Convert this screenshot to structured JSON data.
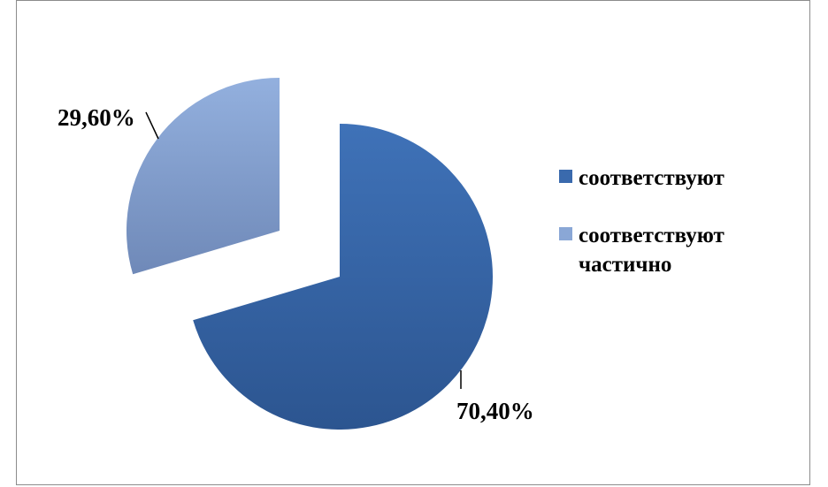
{
  "chart_data": {
    "type": "pie",
    "categories": [
      "соответствуют",
      "соответствуют частично"
    ],
    "values": [
      70.4,
      29.6
    ],
    "labels": [
      "70,40%",
      "29,60%"
    ],
    "colors": [
      "#3a6aad",
      "#8aa7d6"
    ],
    "exploded": true,
    "legend_position": "right"
  }
}
